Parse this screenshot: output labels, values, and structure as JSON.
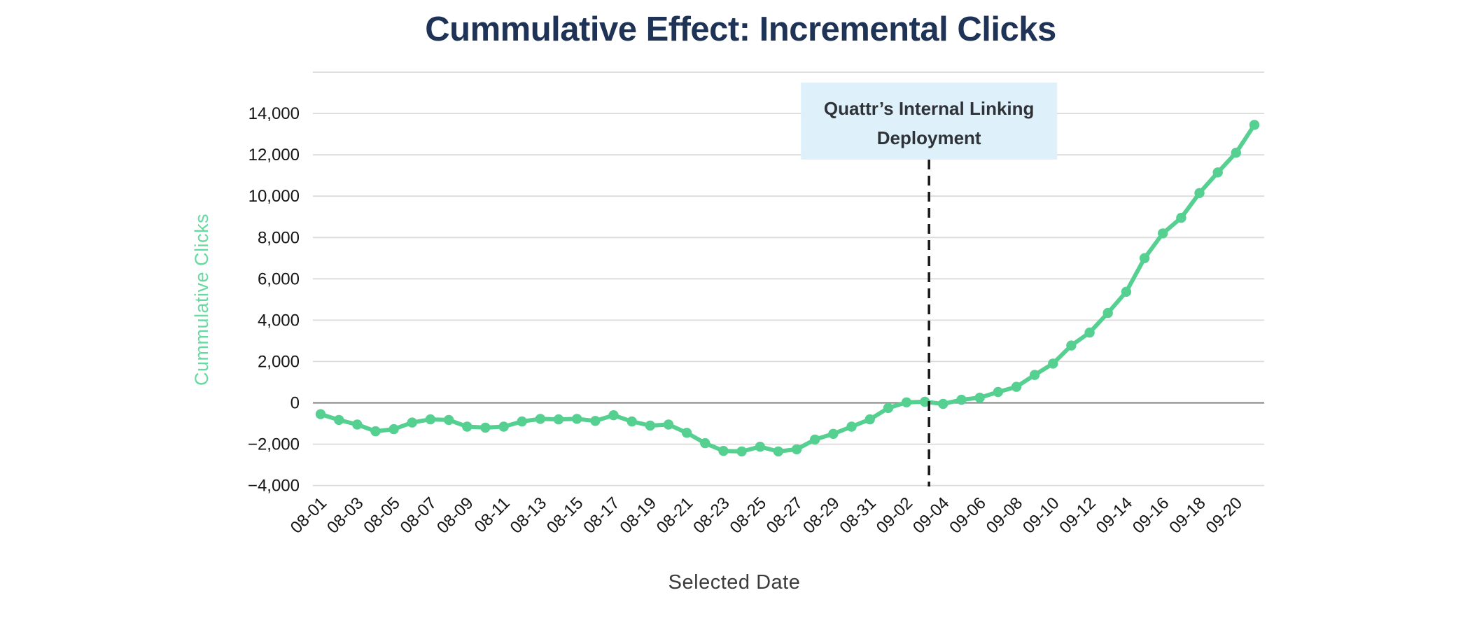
{
  "header": {
    "title": "Cummulative Effect: Incremental Clicks"
  },
  "annotation": {
    "line1": "Quattr’s Internal Linking",
    "line2": "Deployment"
  },
  "colors": {
    "title": "#1E3355",
    "line": "#55D091",
    "y_axis_title": "#67DAA1",
    "x_axis_title": "#3B3B3B",
    "tick_label": "#141414",
    "gridline": "#DBDBDB",
    "zero_line": "#8E8E8E",
    "vline": "#1A1A1A",
    "annotation_bg": "#DEF1FB",
    "annotation_text": "#2F3338"
  },
  "chart_data": {
    "type": "line",
    "title": "Cummulative Effect: Incremental Clicks",
    "xlabel": "Selected Date",
    "ylabel": "Cummulative Clicks",
    "grid": true,
    "legend_position": "none",
    "ylim": [
      -4000,
      16000
    ],
    "yticks": [
      -4000,
      -2000,
      0,
      2000,
      4000,
      6000,
      8000,
      10000,
      12000,
      14000
    ],
    "ygrid": [
      -4000,
      -2000,
      0,
      2000,
      4000,
      6000,
      8000,
      10000,
      12000,
      14000,
      16000
    ],
    "xtick_every": 2,
    "x": [
      "08-01",
      "08-02",
      "08-03",
      "08-04",
      "08-05",
      "08-06",
      "08-07",
      "08-08",
      "08-09",
      "08-10",
      "08-11",
      "08-12",
      "08-13",
      "08-14",
      "08-15",
      "08-16",
      "08-17",
      "08-18",
      "08-19",
      "08-20",
      "08-21",
      "08-22",
      "08-23",
      "08-24",
      "08-25",
      "08-26",
      "08-27",
      "08-28",
      "08-29",
      "08-30",
      "08-31",
      "09-01",
      "09-02",
      "09-03",
      "09-04",
      "09-05",
      "09-06",
      "09-07",
      "09-08",
      "09-09",
      "09-10",
      "09-11",
      "09-12",
      "09-13",
      "09-14",
      "09-15",
      "09-16",
      "09-17",
      "09-18",
      "09-19",
      "09-20",
      "09-21"
    ],
    "series": [
      {
        "name": "Cummulative Clicks",
        "color": "#55D091",
        "values": [
          -550,
          -825,
          -1050,
          -1375,
          -1275,
          -950,
          -800,
          -825,
          -1150,
          -1200,
          -1150,
          -900,
          -775,
          -800,
          -775,
          -875,
          -600,
          -900,
          -1100,
          -1050,
          -1450,
          -1950,
          -2325,
          -2350,
          -2125,
          -2350,
          -2250,
          -1775,
          -1500,
          -1150,
          -800,
          -250,
          25,
          50,
          -50,
          150,
          250,
          525,
          775,
          1350,
          1900,
          2775,
          3400,
          4350,
          5375,
          7000,
          8200,
          8950,
          10150,
          11150,
          12100,
          13450
        ]
      }
    ],
    "vline": {
      "date": "09-03",
      "style": "dashed",
      "label": "Quattr’s Internal Linking Deployment"
    }
  }
}
